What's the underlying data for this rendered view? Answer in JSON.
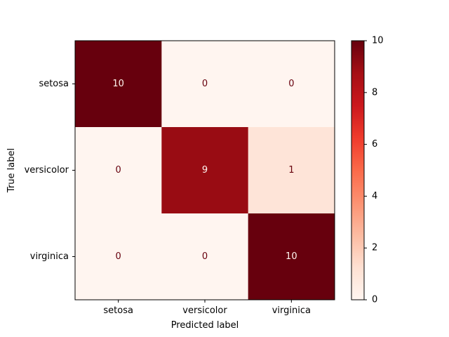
{
  "chart_data": {
    "type": "heatmap",
    "title": "",
    "xlabel": "Predicted label",
    "ylabel": "True label",
    "x_categories": [
      "setosa",
      "versicolor",
      "virginica"
    ],
    "y_categories": [
      "setosa",
      "versicolor",
      "virginica"
    ],
    "values": [
      [
        10,
        0,
        0
      ],
      [
        0,
        9,
        1
      ],
      [
        0,
        0,
        10
      ]
    ],
    "colormap": "Reds",
    "colorbar": {
      "range": [
        0,
        10
      ],
      "ticks": [
        0,
        2,
        4,
        6,
        8,
        10
      ]
    },
    "grid": false
  }
}
